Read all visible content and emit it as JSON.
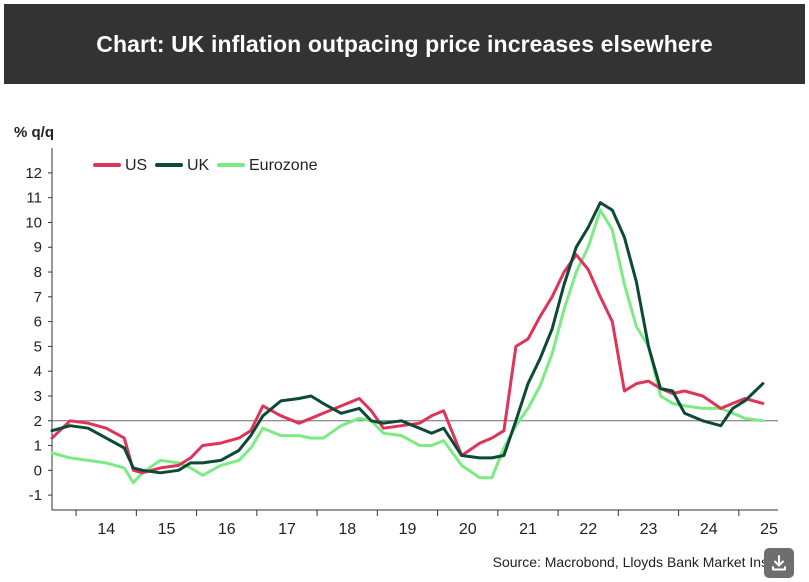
{
  "header": {
    "title": "Chart: UK inflation outpacing price increases elsewhere"
  },
  "source": "Source: Macrobond, Lloyds Bank Market Insig",
  "icons": {
    "download": "download-icon"
  },
  "colors": {
    "US": "#e0335a",
    "UK": "#0d4a35",
    "Eurozone": "#7ceb84",
    "reference": "#6b6b6b",
    "header_bg": "#333333"
  },
  "chart_data": {
    "type": "line",
    "title": "",
    "ylabel": "% q/q",
    "xlabel": "",
    "ylim": [
      -1.6,
      12.6
    ],
    "xlim": [
      2013.6,
      2025.65
    ],
    "y_ticks": [
      "12",
      "11",
      "10",
      "9",
      "8",
      "7",
      "6",
      "5",
      "4",
      "3",
      "2",
      "1",
      "0",
      "-1"
    ],
    "x_ticks": [
      "14",
      "15",
      "16",
      "17",
      "18",
      "19",
      "20",
      "21",
      "22",
      "23",
      "24",
      "25"
    ],
    "reference_line": 2,
    "legend": "top-left",
    "series": [
      {
        "name": "US",
        "x": [
          2013.6,
          2013.9,
          2014.2,
          2014.5,
          2014.8,
          2014.95,
          2015.1,
          2015.4,
          2015.7,
          2015.9,
          2016.1,
          2016.4,
          2016.7,
          2016.9,
          2017.1,
          2017.4,
          2017.7,
          2017.9,
          2018.1,
          2018.4,
          2018.7,
          2018.9,
          2019.1,
          2019.4,
          2019.7,
          2019.9,
          2020.1,
          2020.4,
          2020.7,
          2020.9,
          2021.1,
          2021.3,
          2021.5,
          2021.7,
          2021.9,
          2022.1,
          2022.3,
          2022.5,
          2022.7,
          2022.9,
          2023.1,
          2023.3,
          2023.5,
          2023.7,
          2023.9,
          2024.1,
          2024.4,
          2024.7,
          2024.9,
          2025.1,
          2025.4
        ],
        "values": [
          1.3,
          2.0,
          1.9,
          1.7,
          1.3,
          0.0,
          -0.1,
          0.1,
          0.2,
          0.5,
          1.0,
          1.1,
          1.3,
          1.6,
          2.6,
          2.2,
          1.9,
          2.1,
          2.3,
          2.6,
          2.9,
          2.4,
          1.7,
          1.8,
          1.9,
          2.2,
          2.4,
          0.6,
          1.1,
          1.3,
          1.6,
          5.0,
          5.3,
          6.2,
          7.0,
          8.0,
          8.7,
          8.1,
          7.0,
          6.0,
          3.2,
          3.5,
          3.6,
          3.3,
          3.1,
          3.2,
          3.0,
          2.5,
          2.7,
          2.9,
          2.7
        ]
      },
      {
        "name": "UK",
        "x": [
          2013.6,
          2013.9,
          2014.2,
          2014.5,
          2014.8,
          2014.95,
          2015.1,
          2015.4,
          2015.7,
          2015.9,
          2016.1,
          2016.4,
          2016.7,
          2016.9,
          2017.1,
          2017.4,
          2017.7,
          2017.9,
          2018.1,
          2018.4,
          2018.7,
          2018.9,
          2019.1,
          2019.4,
          2019.7,
          2019.9,
          2020.1,
          2020.4,
          2020.7,
          2020.9,
          2021.1,
          2021.3,
          2021.5,
          2021.7,
          2021.9,
          2022.1,
          2022.3,
          2022.5,
          2022.7,
          2022.9,
          2023.1,
          2023.3,
          2023.5,
          2023.7,
          2023.9,
          2024.1,
          2024.4,
          2024.7,
          2024.9,
          2025.1,
          2025.4
        ],
        "values": [
          1.6,
          1.8,
          1.7,
          1.3,
          0.9,
          0.1,
          0.0,
          -0.1,
          0.0,
          0.3,
          0.3,
          0.4,
          0.8,
          1.4,
          2.2,
          2.8,
          2.9,
          3.0,
          2.7,
          2.3,
          2.5,
          2.0,
          1.9,
          2.0,
          1.7,
          1.5,
          1.7,
          0.6,
          0.5,
          0.5,
          0.6,
          2.0,
          3.5,
          4.5,
          5.7,
          7.5,
          9.0,
          9.8,
          10.8,
          10.5,
          9.4,
          7.6,
          5.0,
          3.3,
          3.2,
          2.3,
          2.0,
          1.8,
          2.5,
          2.8,
          3.5
        ]
      },
      {
        "name": "Eurozone",
        "x": [
          2013.6,
          2013.9,
          2014.2,
          2014.5,
          2014.8,
          2014.95,
          2015.1,
          2015.4,
          2015.7,
          2015.9,
          2016.1,
          2016.4,
          2016.7,
          2016.9,
          2017.1,
          2017.4,
          2017.7,
          2017.9,
          2018.1,
          2018.4,
          2018.7,
          2018.9,
          2019.1,
          2019.4,
          2019.7,
          2019.9,
          2020.1,
          2020.4,
          2020.7,
          2020.9,
          2021.1,
          2021.3,
          2021.5,
          2021.7,
          2021.9,
          2022.1,
          2022.3,
          2022.5,
          2022.7,
          2022.9,
          2023.1,
          2023.3,
          2023.5,
          2023.7,
          2023.9,
          2024.1,
          2024.4,
          2024.7,
          2024.9,
          2025.1,
          2025.4
        ],
        "values": [
          0.7,
          0.5,
          0.4,
          0.3,
          0.1,
          -0.5,
          -0.1,
          0.4,
          0.3,
          0.1,
          -0.2,
          0.2,
          0.4,
          0.9,
          1.7,
          1.4,
          1.4,
          1.3,
          1.3,
          1.8,
          2.1,
          2.0,
          1.5,
          1.4,
          1.0,
          1.0,
          1.2,
          0.2,
          -0.3,
          -0.3,
          0.9,
          1.8,
          2.5,
          3.4,
          4.7,
          6.5,
          8.0,
          9.0,
          10.5,
          9.7,
          7.5,
          5.8,
          5.0,
          3.0,
          2.7,
          2.6,
          2.5,
          2.5,
          2.3,
          2.1,
          2.0
        ]
      }
    ]
  }
}
